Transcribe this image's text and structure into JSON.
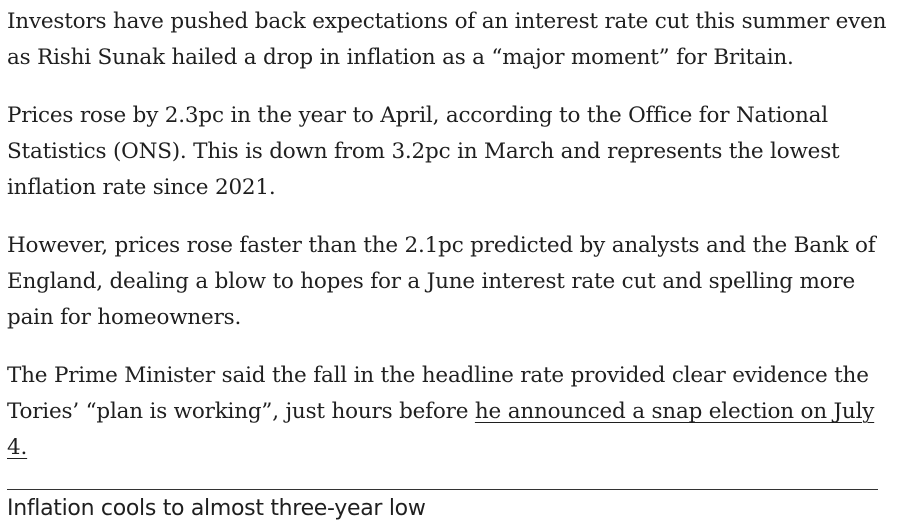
{
  "article": {
    "paragraphs": [
      {
        "text": "Investors have pushed back expectations of an interest rate cut this summer even as Rishi Sunak hailed a drop in inflation as a “major moment” for Britain."
      },
      {
        "text": "Prices rose by 2.3pc in the year to April, according to the Office for National Statistics (ONS). This is down from 3.2pc in March and represents the lowest inflation rate since 2021."
      },
      {
        "text": "However, prices rose faster than the 2.1pc predicted by analysts and the Bank of England, dealing a blow to hopes for a June interest rate cut and spelling more pain for homeowners."
      },
      {
        "text_before_link": "The Prime Minister said the fall in the headline rate provided clear evidence the Tories’ “plan is working”, just hours before ",
        "link_text": "he announced a snap election on July 4."
      }
    ],
    "section_heading": "Inflation cools to almost three-year low"
  }
}
